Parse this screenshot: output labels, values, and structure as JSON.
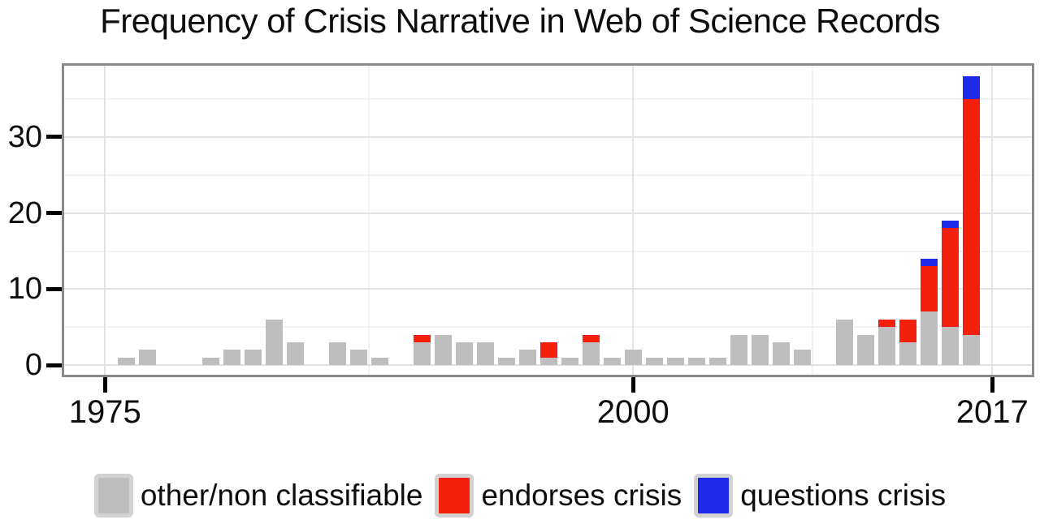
{
  "title": "Frequency of Crisis Narrative in Web of Science Records",
  "legend": {
    "items": [
      {
        "key": "other",
        "label": "other/non classifiable",
        "color": "#bebebe"
      },
      {
        "key": "endorses",
        "label": "endorses crisis",
        "color": "#f3200e"
      },
      {
        "key": "questions",
        "label": "questions crisis",
        "color": "#1d2be9"
      }
    ]
  },
  "colors": {
    "other": "#bebebe",
    "endorses": "#f3200e",
    "questions": "#1d2be9",
    "grid_major": "#e2e2e2",
    "grid_minor": "#f2f2f2",
    "panel_border": "#8a8a8a",
    "tick": "#000000",
    "text": "#0d0d0d"
  },
  "chart_data": {
    "type": "bar",
    "subtype": "stacked",
    "title": "Frequency of Crisis Narrative in Web of Science Records",
    "xlabel": "",
    "ylabel": "",
    "x_axis": {
      "tick_years": [
        1975,
        2000,
        2017
      ],
      "tick_labels": [
        "1975",
        "2000",
        "2017"
      ],
      "minor_years": [
        1987.5,
        2008.5
      ],
      "range": [
        1973,
        2019
      ]
    },
    "y_axis": {
      "ticks": [
        0,
        10,
        20,
        30
      ],
      "tick_labels": [
        "0",
        "10",
        "20",
        "30"
      ],
      "minor": [
        5,
        15,
        25,
        35
      ],
      "range": [
        -1.6,
        39.8
      ]
    },
    "series_order": [
      "other",
      "endorses",
      "questions"
    ],
    "series_labels": {
      "other": "other/non classifiable",
      "endorses": "endorses crisis",
      "questions": "questions crisis"
    },
    "bars": [
      {
        "year": 1976,
        "other": 1,
        "endorses": 0,
        "questions": 0
      },
      {
        "year": 1977,
        "other": 2,
        "endorses": 0,
        "questions": 0
      },
      {
        "year": 1980,
        "other": 1,
        "endorses": 0,
        "questions": 0
      },
      {
        "year": 1981,
        "other": 2,
        "endorses": 0,
        "questions": 0
      },
      {
        "year": 1982,
        "other": 2,
        "endorses": 0,
        "questions": 0
      },
      {
        "year": 1983,
        "other": 6,
        "endorses": 0,
        "questions": 0
      },
      {
        "year": 1984,
        "other": 3,
        "endorses": 0,
        "questions": 0
      },
      {
        "year": 1986,
        "other": 3,
        "endorses": 0,
        "questions": 0
      },
      {
        "year": 1987,
        "other": 2,
        "endorses": 0,
        "questions": 0
      },
      {
        "year": 1988,
        "other": 1,
        "endorses": 0,
        "questions": 0
      },
      {
        "year": 1990,
        "other": 3,
        "endorses": 1,
        "questions": 0
      },
      {
        "year": 1991,
        "other": 4,
        "endorses": 0,
        "questions": 0
      },
      {
        "year": 1992,
        "other": 3,
        "endorses": 0,
        "questions": 0
      },
      {
        "year": 1993,
        "other": 3,
        "endorses": 0,
        "questions": 0
      },
      {
        "year": 1994,
        "other": 1,
        "endorses": 0,
        "questions": 0
      },
      {
        "year": 1995,
        "other": 2,
        "endorses": 0,
        "questions": 0
      },
      {
        "year": 1996,
        "other": 1,
        "endorses": 2,
        "questions": 0
      },
      {
        "year": 1997,
        "other": 1,
        "endorses": 0,
        "questions": 0
      },
      {
        "year": 1998,
        "other": 3,
        "endorses": 1,
        "questions": 0
      },
      {
        "year": 1999,
        "other": 1,
        "endorses": 0,
        "questions": 0
      },
      {
        "year": 2000,
        "other": 2,
        "endorses": 0,
        "questions": 0
      },
      {
        "year": 2001,
        "other": 1,
        "endorses": 0,
        "questions": 0
      },
      {
        "year": 2002,
        "other": 1,
        "endorses": 0,
        "questions": 0
      },
      {
        "year": 2003,
        "other": 1,
        "endorses": 0,
        "questions": 0
      },
      {
        "year": 2004,
        "other": 1,
        "endorses": 0,
        "questions": 0
      },
      {
        "year": 2005,
        "other": 4,
        "endorses": 0,
        "questions": 0
      },
      {
        "year": 2006,
        "other": 4,
        "endorses": 0,
        "questions": 0
      },
      {
        "year": 2007,
        "other": 3,
        "endorses": 0,
        "questions": 0
      },
      {
        "year": 2008,
        "other": 2,
        "endorses": 0,
        "questions": 0
      },
      {
        "year": 2010,
        "other": 6,
        "endorses": 0,
        "questions": 0
      },
      {
        "year": 2011,
        "other": 4,
        "endorses": 0,
        "questions": 0
      },
      {
        "year": 2012,
        "other": 5,
        "endorses": 1,
        "questions": 0
      },
      {
        "year": 2013,
        "other": 3,
        "endorses": 3,
        "questions": 0
      },
      {
        "year": 2014,
        "other": 7,
        "endorses": 6,
        "questions": 1
      },
      {
        "year": 2015,
        "other": 5,
        "endorses": 13,
        "questions": 1
      },
      {
        "year": 2016,
        "other": 4,
        "endorses": 31,
        "questions": 3
      }
    ]
  }
}
